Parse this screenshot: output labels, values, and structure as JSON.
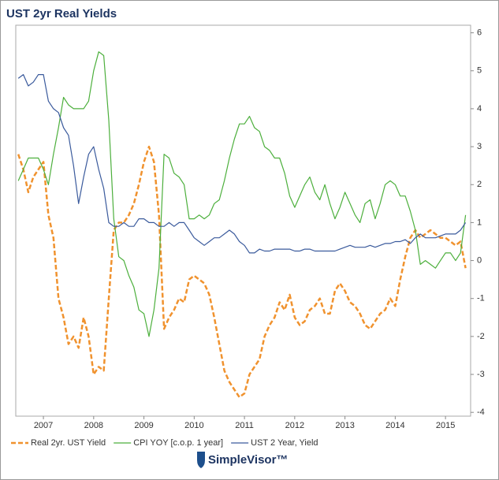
{
  "chart_data": {
    "type": "line",
    "title": "UST 2yr Real Yields",
    "source": "SimpleVisor™",
    "x": [
      2007.0,
      2007.1,
      2007.2,
      2007.3,
      2007.4,
      2007.5,
      2007.6,
      2007.7,
      2007.8,
      2007.9,
      2008.0,
      2008.1,
      2008.2,
      2008.3,
      2008.4,
      2008.5,
      2008.6,
      2008.7,
      2008.8,
      2008.9,
      2009.0,
      2009.1,
      2009.2,
      2009.3,
      2009.4,
      2009.5,
      2009.6,
      2009.7,
      2009.8,
      2009.9,
      2010.0,
      2010.1,
      2010.2,
      2010.3,
      2010.4,
      2010.5,
      2010.6,
      2010.7,
      2010.8,
      2010.9,
      2011.0,
      2011.1,
      2011.2,
      2011.3,
      2011.4,
      2011.5,
      2011.6,
      2011.7,
      2011.8,
      2011.9,
      2012.0,
      2012.1,
      2012.2,
      2012.3,
      2012.4,
      2012.5,
      2012.6,
      2012.7,
      2012.8,
      2012.9,
      2013.0,
      2013.1,
      2013.2,
      2013.3,
      2013.4,
      2013.5,
      2013.6,
      2013.7,
      2013.8,
      2013.9,
      2014.0,
      2014.1,
      2014.2,
      2014.3,
      2014.4,
      2014.5,
      2014.6,
      2014.7,
      2014.8,
      2014.9,
      2015.0,
      2015.1,
      2015.2,
      2015.3,
      2015.4,
      2015.5,
      2015.6,
      2015.7,
      2015.8,
      2015.9
    ],
    "series": [
      {
        "name": "Real 2yr. UST Yield",
        "color": "#f0922e",
        "dashed": true,
        "values": [
          2.8,
          2.4,
          1.8,
          2.2,
          2.4,
          2.6,
          1.2,
          0.6,
          -1.0,
          -1.5,
          -2.2,
          -2.0,
          -2.3,
          -1.5,
          -2.0,
          -3.0,
          -2.8,
          -2.9,
          -1.0,
          0.8,
          1.0,
          1.0,
          1.2,
          1.5,
          2.0,
          2.6,
          3.0,
          2.6,
          1.2,
          -1.8,
          -1.5,
          -1.3,
          -1.0,
          -1.1,
          -0.5,
          -0.4,
          -0.5,
          -0.6,
          -0.9,
          -1.5,
          -2.2,
          -2.9,
          -3.2,
          -3.4,
          -3.6,
          -3.5,
          -3.0,
          -2.8,
          -2.6,
          -2.0,
          -1.7,
          -1.5,
          -1.1,
          -1.3,
          -0.9,
          -1.5,
          -1.7,
          -1.6,
          -1.3,
          -1.2,
          -1.0,
          -1.4,
          -1.4,
          -0.8,
          -0.6,
          -0.8,
          -1.1,
          -1.2,
          -1.4,
          -1.7,
          -1.8,
          -1.6,
          -1.4,
          -1.3,
          -1.0,
          -1.2,
          -0.5,
          0.1,
          0.6,
          0.8,
          0.6,
          0.7,
          0.8,
          0.7,
          0.6,
          0.6,
          0.5,
          0.4,
          0.5,
          -0.2
        ]
      },
      {
        "name": "CPI YOY [c.o.p. 1 year]",
        "color": "#4caf3c",
        "dashed": false,
        "values": [
          2.1,
          2.4,
          2.7,
          2.7,
          2.7,
          2.4,
          2.0,
          2.8,
          3.5,
          4.3,
          4.1,
          4.0,
          4.0,
          4.0,
          4.2,
          5.0,
          5.5,
          5.4,
          3.7,
          1.1,
          0.1,
          0.0,
          -0.4,
          -0.7,
          -1.3,
          -1.4,
          -2.0,
          -1.3,
          -0.2,
          2.8,
          2.7,
          2.3,
          2.2,
          2.0,
          1.1,
          1.1,
          1.2,
          1.1,
          1.2,
          1.5,
          1.6,
          2.1,
          2.7,
          3.2,
          3.6,
          3.6,
          3.8,
          3.5,
          3.4,
          3.0,
          2.9,
          2.7,
          2.7,
          2.3,
          1.7,
          1.4,
          1.7,
          2.0,
          2.2,
          1.8,
          1.6,
          2.0,
          1.5,
          1.1,
          1.4,
          1.8,
          1.5,
          1.2,
          1.0,
          1.5,
          1.6,
          1.1,
          1.5,
          2.0,
          2.1,
          2.0,
          1.7,
          1.7,
          1.3,
          0.8,
          -0.1,
          0.0,
          -0.1,
          -0.2,
          0.0,
          0.2,
          0.2,
          0.0,
          0.2,
          1.2
        ]
      },
      {
        "name": "UST 2 Year, Yield",
        "color": "#3a5a9c",
        "dashed": false,
        "values": [
          4.8,
          4.9,
          4.6,
          4.7,
          4.9,
          4.9,
          4.2,
          4.0,
          3.9,
          3.5,
          3.3,
          2.5,
          1.5,
          2.2,
          2.8,
          3.0,
          2.4,
          1.9,
          1.0,
          0.9,
          0.9,
          1.0,
          0.9,
          0.9,
          1.1,
          1.1,
          1.0,
          1.0,
          0.9,
          0.9,
          1.0,
          0.9,
          1.0,
          1.0,
          0.8,
          0.6,
          0.5,
          0.4,
          0.5,
          0.6,
          0.6,
          0.7,
          0.8,
          0.7,
          0.5,
          0.4,
          0.2,
          0.2,
          0.3,
          0.25,
          0.25,
          0.3,
          0.3,
          0.3,
          0.3,
          0.25,
          0.25,
          0.3,
          0.3,
          0.25,
          0.25,
          0.25,
          0.25,
          0.25,
          0.3,
          0.35,
          0.4,
          0.35,
          0.35,
          0.35,
          0.4,
          0.35,
          0.4,
          0.45,
          0.45,
          0.5,
          0.5,
          0.55,
          0.45,
          0.6,
          0.7,
          0.6,
          0.6,
          0.6,
          0.65,
          0.7,
          0.7,
          0.7,
          0.8,
          1.0
        ]
      }
    ],
    "xlim": [
      2006.95,
      2016.0
    ],
    "xticks": [
      {
        "value": 2007.5,
        "label": "2007"
      },
      {
        "value": 2008.5,
        "label": "2008"
      },
      {
        "value": 2009.5,
        "label": "2009"
      },
      {
        "value": 2010.5,
        "label": "2010"
      },
      {
        "value": 2011.5,
        "label": "2011"
      },
      {
        "value": 2012.5,
        "label": "2012"
      },
      {
        "value": 2013.5,
        "label": "2013"
      },
      {
        "value": 2014.5,
        "label": "2014"
      },
      {
        "value": 2015.5,
        "label": "2015"
      }
    ],
    "ylim": [
      -4.1,
      6.2
    ],
    "yticks": [
      -4,
      -3,
      -2,
      -1,
      0,
      1,
      2,
      3,
      4,
      5,
      6
    ],
    "grid": false
  }
}
